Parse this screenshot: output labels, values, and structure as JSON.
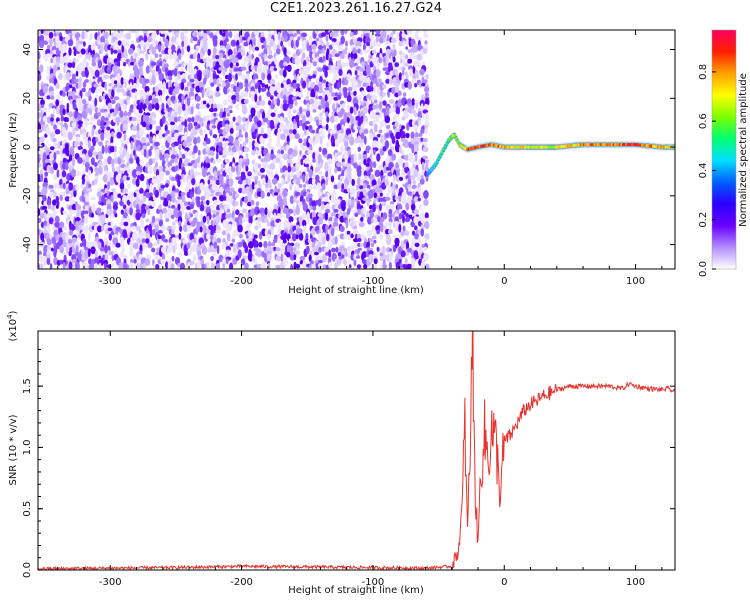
{
  "title": "C2E1.2023.261.16.27.G24",
  "colors": {
    "snr_line": "#e8332d",
    "background": "#ffffff",
    "axis": "#000000"
  },
  "chart_data": [
    {
      "type": "heatmap",
      "xlabel": "Height of straight line (km)",
      "ylabel": "Frequency (Hz)",
      "xlim": [
        -355,
        130
      ],
      "ylim": [
        -50,
        48
      ],
      "x_ticks": [
        -300,
        -200,
        -100,
        0,
        100
      ],
      "y_ticks": [
        -40,
        -20,
        0,
        20,
        40
      ],
      "colorbar": {
        "label": "Normalized spectral amplitude",
        "range": [
          0.0,
          0.97
        ],
        "ticks": [
          "0.0",
          "0.2",
          "0.4",
          "0.6",
          "0.8"
        ],
        "tick_values": [
          0.0,
          0.2,
          0.4,
          0.6,
          0.8
        ],
        "palette": [
          "#ffffff",
          "#b48cff",
          "#6a00ff",
          "#2a00ff",
          "#0060ff",
          "#00e0ff",
          "#00ff70",
          "#7cff00",
          "#ffff00",
          "#ffa000",
          "#ff2000",
          "#ff0060"
        ]
      },
      "noise_region": {
        "x_range": [
          -355,
          -58
        ],
        "amplitude_range": [
          0.0,
          0.22
        ]
      },
      "signal_trace": {
        "x": [
          -58,
          -52,
          -46,
          -42,
          -38,
          -34,
          -28,
          -20,
          -10,
          0,
          20,
          40,
          60,
          80,
          100,
          120,
          130
        ],
        "frequency": [
          -11,
          -7,
          -1,
          3,
          5,
          1,
          -1,
          0,
          1,
          0,
          0,
          0,
          1,
          1,
          1,
          0,
          0
        ],
        "amplitude": [
          0.45,
          0.5,
          0.55,
          0.6,
          0.65,
          0.7,
          0.85,
          0.9,
          0.85,
          0.8,
          0.7,
          0.7,
          0.8,
          0.85,
          0.9,
          0.75,
          0.7
        ]
      },
      "grid": false
    },
    {
      "type": "line",
      "xlabel": "Height of straight line (km)",
      "ylabel": "SNR (10 * v/v)",
      "y_multiplier": "(x10",
      "y_multiplier_exp": "4",
      "y_multiplier_close": ")",
      "xlim": [
        -355,
        130
      ],
      "ylim": [
        0,
        1.95
      ],
      "x_ticks": [
        -300,
        -200,
        -100,
        0,
        100
      ],
      "y_ticks": [
        "0.0",
        "0.5",
        "1.0",
        "1.5"
      ],
      "y_tick_values": [
        0.0,
        0.5,
        1.0,
        1.5
      ],
      "series": [
        {
          "x": [
            -355,
            -300,
            -250,
            -200,
            -150,
            -100,
            -60,
            -40,
            -35,
            -32,
            -30,
            -28,
            -26,
            -24,
            -22,
            -20,
            -18,
            -15,
            -12,
            -10,
            -6,
            -3,
            0,
            5,
            10,
            15,
            20,
            25,
            30,
            40,
            50,
            60,
            70,
            80,
            90,
            95,
            100,
            110,
            120,
            125,
            130
          ],
          "y": [
            0.01,
            0.015,
            0.02,
            0.03,
            0.025,
            0.02,
            0.015,
            0.03,
            0.15,
            0.5,
            1.2,
            0.3,
            1.0,
            1.95,
            0.6,
            0.2,
            0.8,
            1.1,
            0.9,
            1.15,
            1.0,
            0.6,
            1.05,
            1.1,
            1.2,
            1.3,
            1.35,
            1.38,
            1.42,
            1.47,
            1.5,
            1.5,
            1.5,
            1.5,
            1.48,
            1.52,
            1.5,
            1.48,
            1.47,
            1.48,
            1.45
          ]
        }
      ],
      "grid": false
    }
  ]
}
